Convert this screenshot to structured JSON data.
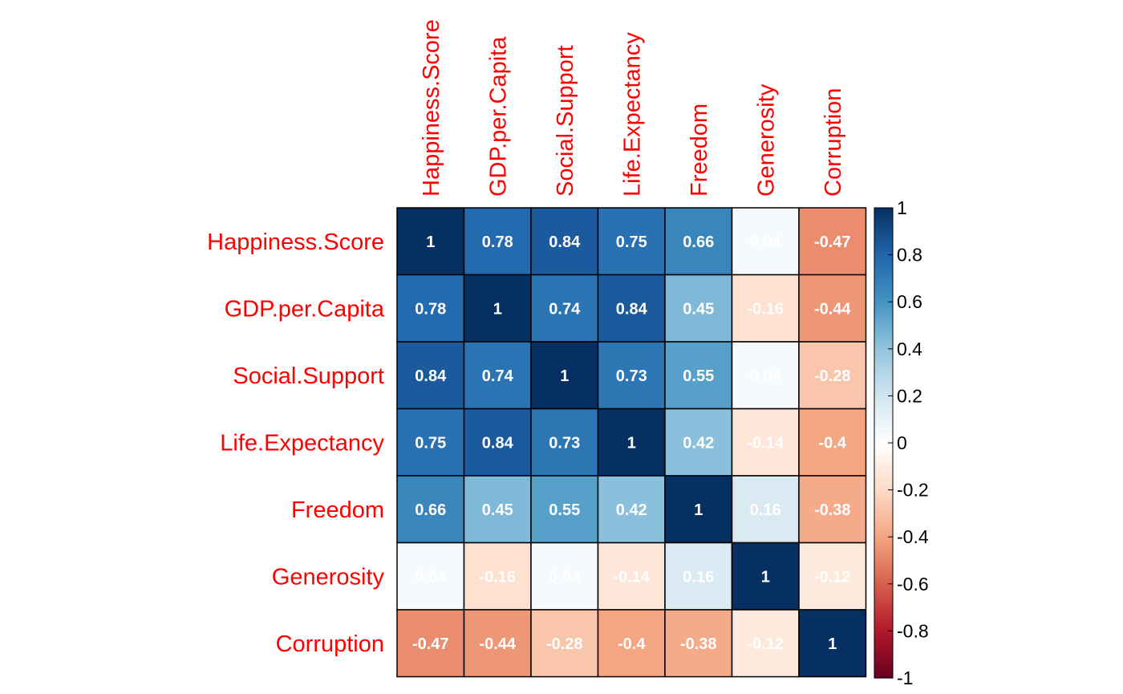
{
  "chart_data": {
    "type": "heatmap",
    "variables": [
      "Happiness.Score",
      "GDP.per.Capita",
      "Social.Support",
      "Life.Expectancy",
      "Freedom",
      "Generosity",
      "Corruption"
    ],
    "matrix": [
      [
        1,
        0.78,
        0.84,
        0.75,
        0.66,
        0.04,
        -0.47
      ],
      [
        0.78,
        1,
        0.74,
        0.84,
        0.45,
        -0.16,
        -0.44
      ],
      [
        0.84,
        0.74,
        1,
        0.73,
        0.55,
        0.04,
        -0.28
      ],
      [
        0.75,
        0.84,
        0.73,
        1,
        0.42,
        -0.14,
        -0.4
      ],
      [
        0.66,
        0.45,
        0.55,
        0.42,
        1,
        0.16,
        -0.38
      ],
      [
        0.04,
        -0.16,
        0.04,
        -0.14,
        0.16,
        1,
        -0.12
      ],
      [
        -0.47,
        -0.44,
        -0.28,
        -0.4,
        -0.38,
        -0.12,
        1
      ]
    ],
    "value_labels": [
      [
        "1",
        "0.78",
        "0.84",
        "0.75",
        "0.66",
        "0.04",
        "-0.47"
      ],
      [
        "0.78",
        "1",
        "0.74",
        "0.84",
        "0.45",
        "-0.16",
        "-0.44"
      ],
      [
        "0.84",
        "0.74",
        "1",
        "0.73",
        "0.55",
        "0.04",
        "-0.28"
      ],
      [
        "0.75",
        "0.84",
        "0.73",
        "1",
        "0.42",
        "-0.14",
        "-0.4"
      ],
      [
        "0.66",
        "0.45",
        "0.55",
        "0.42",
        "1",
        "0.16",
        "-0.38"
      ],
      [
        "0.04",
        "-0.16",
        "0.04",
        "-0.14",
        "0.16",
        "1",
        "-0.12"
      ],
      [
        "-0.47",
        "-0.44",
        "-0.28",
        "-0.4",
        "-0.38",
        "-0.12",
        "1"
      ]
    ],
    "colorbar": {
      "range": [
        -1,
        1
      ],
      "ticks": [
        1,
        0.8,
        0.6,
        0.4,
        0.2,
        0,
        -0.2,
        -0.4,
        -0.6,
        -0.8,
        -1
      ],
      "tick_labels": [
        "1",
        "0.8",
        "0.6",
        "0.4",
        "0.2",
        "0",
        "-0.2",
        "-0.4",
        "-0.6",
        "-0.8",
        "-1"
      ],
      "colors_low_to_high": [
        "#67001F",
        "#B2182B",
        "#D6604D",
        "#F4A582",
        "#FDDBC7",
        "#FFFFFF",
        "#D1E5F0",
        "#92C5DE",
        "#4393C3",
        "#2166AC",
        "#053061"
      ]
    },
    "label_color": "#FF0000",
    "cell_text_color": "#FFFFFF",
    "legend_position": "right",
    "grid": true
  }
}
